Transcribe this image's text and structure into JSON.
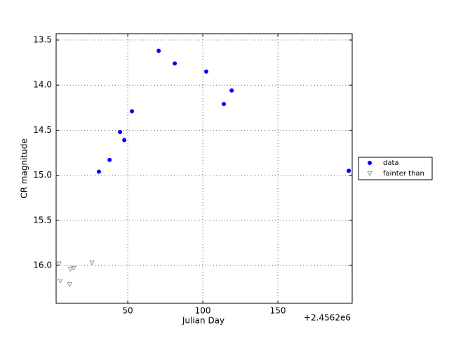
{
  "chart_data": {
    "type": "scatter",
    "xlabel": "Julian Day",
    "ylabel": "CR magnitude",
    "x_offset_label": "+2.4562e6",
    "xlim": [
      2.3,
      199.5
    ],
    "ylim": [
      16.42,
      13.43
    ],
    "xticks": [
      50,
      100,
      150
    ],
    "yticks": [
      13.5,
      {
        "value": 14,
        "label": "14.0"
      },
      14.5,
      {
        "value": 15,
        "label": "15.0"
      },
      15.5,
      {
        "value": 16,
        "label": "16.0"
      }
    ],
    "grid": true,
    "legend": "outside right",
    "series": [
      {
        "name": "data",
        "color": "#0000ff",
        "marker": "circle",
        "x": [
          30.8,
          37.9,
          44.9,
          47.7,
          52.8,
          70.6,
          81.3,
          102.3,
          114.0,
          119.2,
          197.2
        ],
        "values": [
          14.96,
          14.83,
          14.52,
          14.61,
          14.29,
          13.62,
          13.76,
          13.85,
          14.21,
          14.06,
          14.95
        ]
      },
      {
        "name": "fainter than",
        "color": "#808080",
        "marker": "triangle-down",
        "x": [
          4.2,
          5.1,
          11.2,
          11.7,
          14.0,
          26.2
        ],
        "values": [
          15.98,
          16.17,
          16.21,
          16.04,
          16.03,
          15.97
        ]
      }
    ]
  }
}
